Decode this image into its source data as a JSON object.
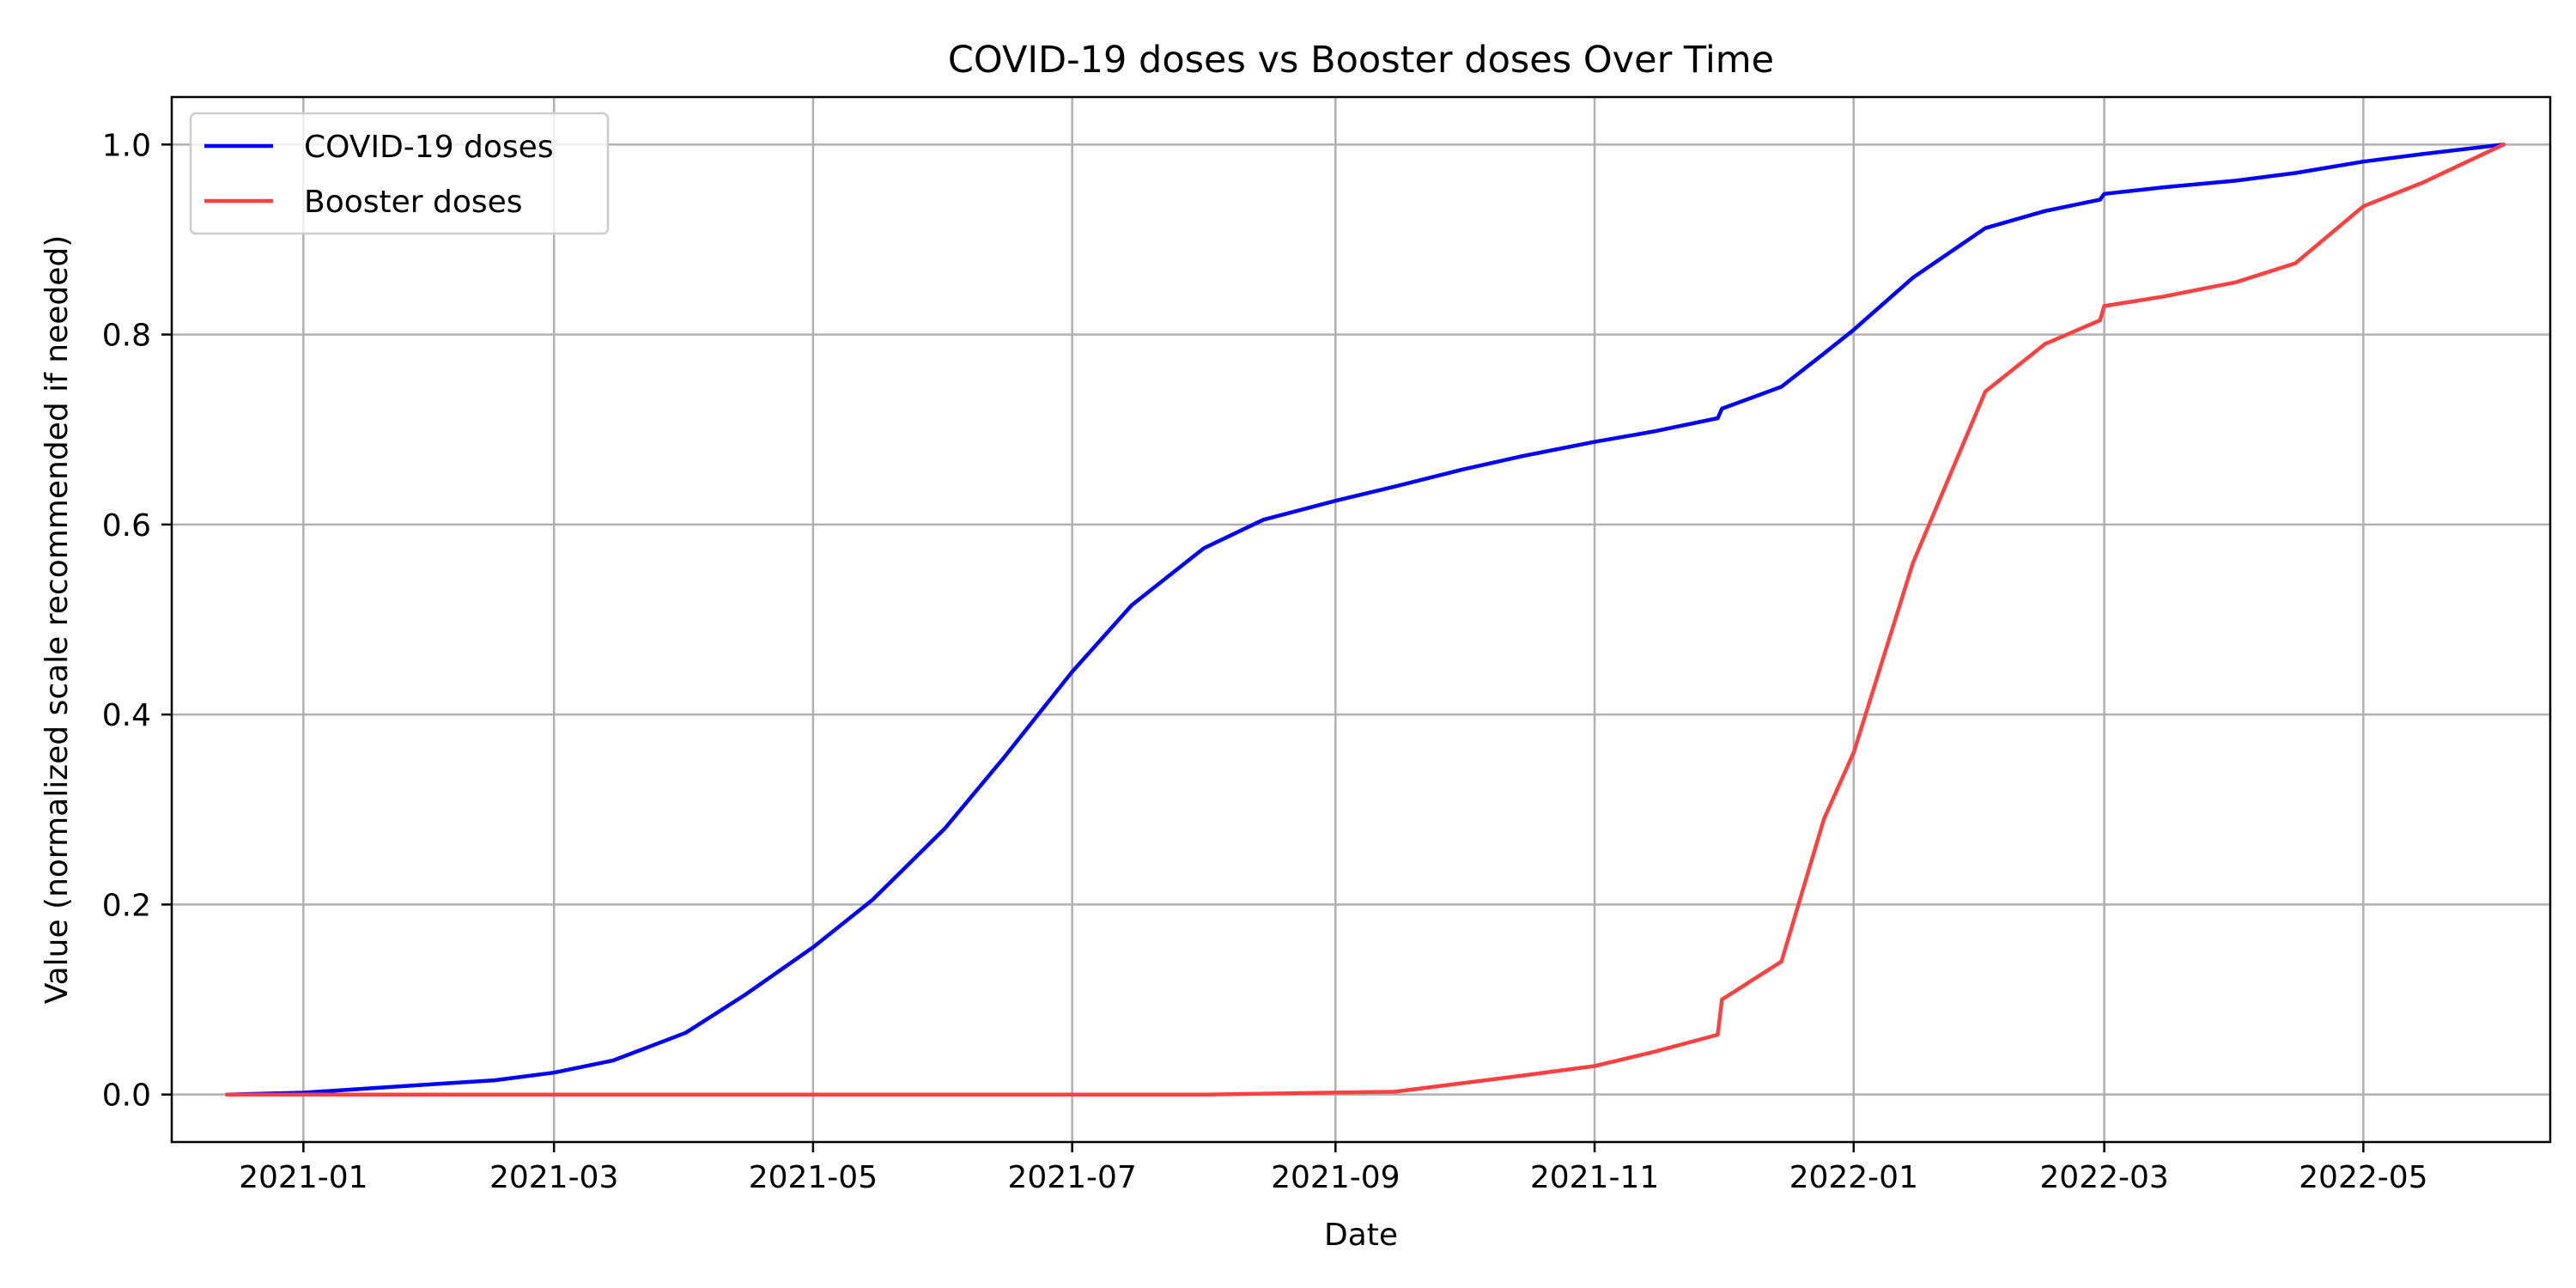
{
  "chart_data": {
    "type": "line",
    "title": "COVID-19 doses vs Booster doses Over Time",
    "xlabel": "Date",
    "ylabel": "Value (normalized scale recommended if needed)",
    "xlim": [
      "2020-12-01",
      "2022-06-14"
    ],
    "ylim": [
      -0.05,
      1.05
    ],
    "x_ticks": [
      {
        "date": "2021-01-01",
        "label": "2021-01"
      },
      {
        "date": "2021-03-01",
        "label": "2021-03"
      },
      {
        "date": "2021-05-01",
        "label": "2021-05"
      },
      {
        "date": "2021-07-01",
        "label": "2021-07"
      },
      {
        "date": "2021-09-01",
        "label": "2021-09"
      },
      {
        "date": "2021-11-01",
        "label": "2021-11"
      },
      {
        "date": "2022-01-01",
        "label": "2022-01"
      },
      {
        "date": "2022-03-01",
        "label": "2022-03"
      },
      {
        "date": "2022-05-01",
        "label": "2022-05"
      }
    ],
    "y_ticks": [
      {
        "value": 0.0,
        "label": "0.0"
      },
      {
        "value": 0.2,
        "label": "0.2"
      },
      {
        "value": 0.4,
        "label": "0.4"
      },
      {
        "value": 0.6,
        "label": "0.6"
      },
      {
        "value": 0.8,
        "label": "0.8"
      },
      {
        "value": 1.0,
        "label": "1.0"
      }
    ],
    "grid": true,
    "legend": "top-left",
    "series": [
      {
        "name": "COVID-19 doses",
        "color": "#0000ff",
        "x": [
          "2020-12-14",
          "2021-01-01",
          "2021-01-15",
          "2021-02-01",
          "2021-02-15",
          "2021-03-01",
          "2021-03-15",
          "2021-04-01",
          "2021-04-15",
          "2021-05-01",
          "2021-05-15",
          "2021-06-01",
          "2021-06-15",
          "2021-07-01",
          "2021-07-15",
          "2021-08-01",
          "2021-08-15",
          "2021-09-01",
          "2021-09-15",
          "2021-10-01",
          "2021-10-15",
          "2021-11-01",
          "2021-11-15",
          "2021-11-30",
          "2021-12-01",
          "2021-12-15",
          "2021-12-25",
          "2022-01-01",
          "2022-01-15",
          "2022-02-01",
          "2022-02-15",
          "2022-02-28",
          "2022-03-01",
          "2022-03-15",
          "2022-04-01",
          "2022-04-15",
          "2022-05-01",
          "2022-05-15",
          "2022-06-03"
        ],
        "y": [
          0.0,
          0.002,
          0.006,
          0.011,
          0.015,
          0.023,
          0.036,
          0.065,
          0.105,
          0.155,
          0.205,
          0.28,
          0.355,
          0.445,
          0.515,
          0.575,
          0.605,
          0.625,
          0.64,
          0.658,
          0.672,
          0.687,
          0.698,
          0.712,
          0.722,
          0.745,
          0.78,
          0.805,
          0.86,
          0.912,
          0.93,
          0.942,
          0.948,
          0.955,
          0.962,
          0.97,
          0.982,
          0.99,
          1.0
        ]
      },
      {
        "name": "Booster doses",
        "color": "#ff4040",
        "x": [
          "2020-12-14",
          "2021-08-01",
          "2021-09-15",
          "2021-10-01",
          "2021-10-15",
          "2021-11-01",
          "2021-11-15",
          "2021-11-30",
          "2021-12-01",
          "2021-12-15",
          "2021-12-25",
          "2022-01-01",
          "2022-01-15",
          "2022-02-01",
          "2022-02-15",
          "2022-02-28",
          "2022-03-01",
          "2022-03-15",
          "2022-04-01",
          "2022-04-15",
          "2022-05-01",
          "2022-05-15",
          "2022-06-03"
        ],
        "y": [
          0.0,
          0.0,
          0.003,
          0.012,
          0.02,
          0.03,
          0.045,
          0.063,
          0.1,
          0.14,
          0.29,
          0.36,
          0.56,
          0.74,
          0.79,
          0.815,
          0.83,
          0.84,
          0.855,
          0.875,
          0.935,
          0.96,
          1.0
        ]
      }
    ]
  }
}
